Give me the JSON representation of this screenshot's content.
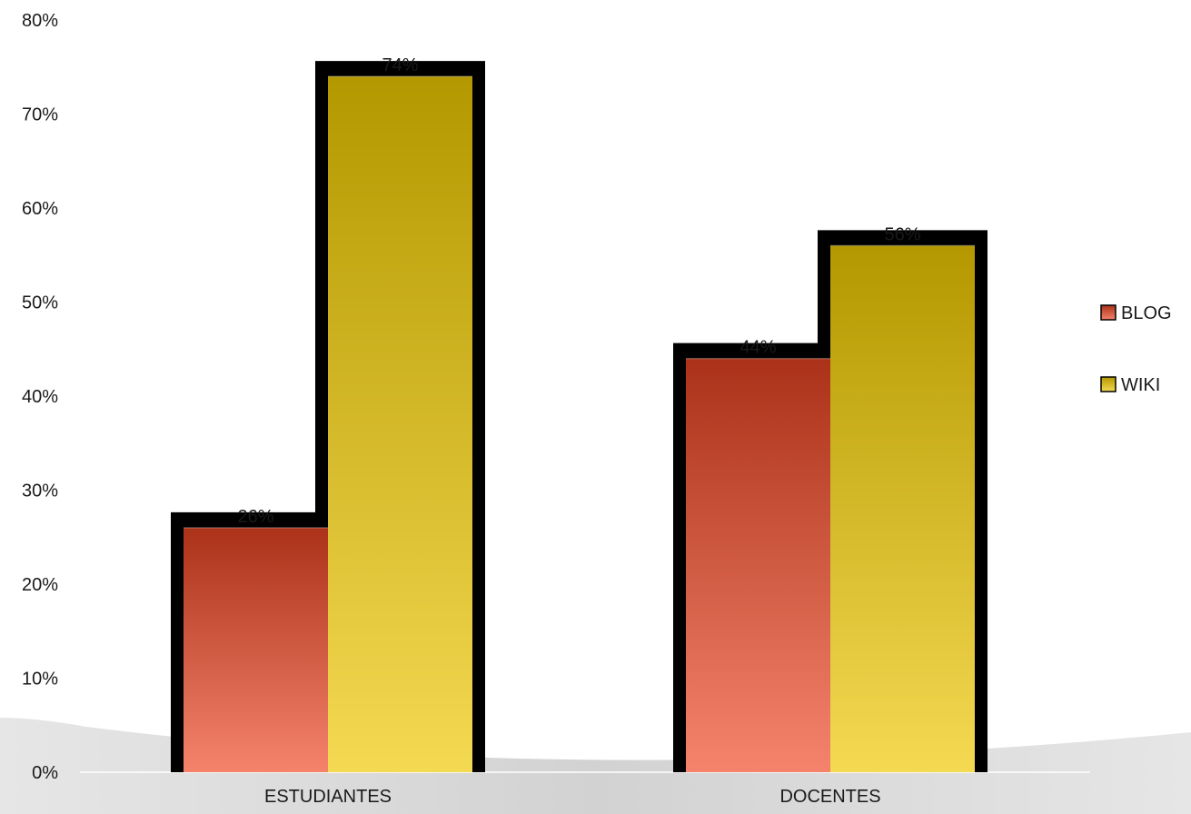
{
  "chart_data": {
    "type": "bar",
    "title": "",
    "xlabel": "",
    "ylabel": "",
    "categories": [
      "ESTUDIANTES",
      "DOCENTES"
    ],
    "series": [
      {
        "name": "BLOG",
        "values": [
          26,
          44
        ],
        "labels": [
          "26%",
          "44%"
        ],
        "color_light": "#f5836c",
        "color_dark": "#ab3219"
      },
      {
        "name": "WIKI",
        "values": [
          74,
          56
        ],
        "labels": [
          "74%",
          "56%"
        ],
        "color_light": "#f4d952",
        "color_dark": "#b49800"
      }
    ],
    "ylim": [
      0,
      80
    ],
    "yticks": [
      "0%",
      "10%",
      "20%",
      "30%",
      "40%",
      "50%",
      "60%",
      "70%",
      "80%"
    ],
    "grid": false,
    "legend_position": "right"
  }
}
